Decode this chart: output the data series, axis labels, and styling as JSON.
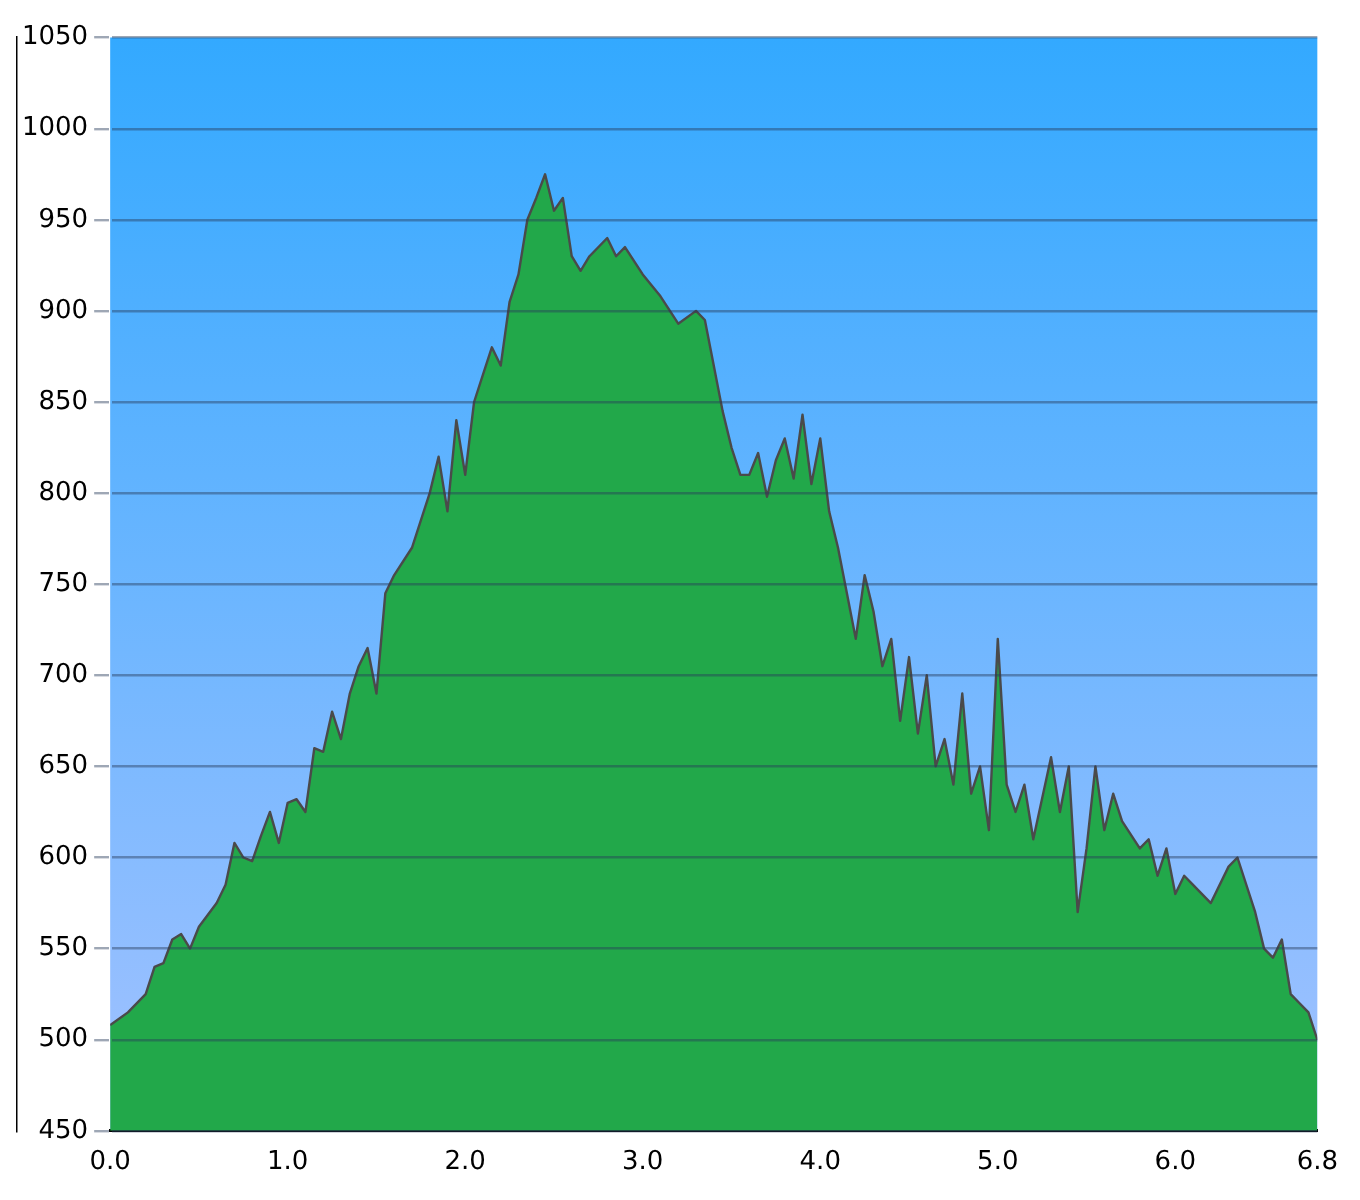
{
  "chart_data": {
    "type": "area",
    "x": [
      0,
      0.1,
      0.2,
      0.25,
      0.3,
      0.35,
      0.4,
      0.45,
      0.5,
      0.6,
      0.65,
      0.7,
      0.75,
      0.8,
      0.85,
      0.9,
      0.95,
      1.0,
      1.05,
      1.1,
      1.15,
      1.2,
      1.25,
      1.3,
      1.35,
      1.4,
      1.45,
      1.5,
      1.55,
      1.6,
      1.7,
      1.8,
      1.85,
      1.9,
      1.95,
      2.0,
      2.05,
      2.1,
      2.15,
      2.2,
      2.25,
      2.3,
      2.35,
      2.4,
      2.45,
      2.5,
      2.55,
      2.6,
      2.65,
      2.7,
      2.8,
      2.85,
      2.9,
      3.0,
      3.1,
      3.2,
      3.3,
      3.35,
      3.4,
      3.45,
      3.5,
      3.55,
      3.6,
      3.65,
      3.7,
      3.75,
      3.8,
      3.85,
      3.9,
      3.95,
      4.0,
      4.05,
      4.1,
      4.15,
      4.2,
      4.25,
      4.3,
      4.35,
      4.4,
      4.45,
      4.5,
      4.55,
      4.6,
      4.65,
      4.7,
      4.75,
      4.8,
      4.85,
      4.9,
      4.95,
      5.0,
      5.05,
      5.1,
      5.15,
      5.2,
      5.3,
      5.35,
      5.4,
      5.45,
      5.5,
      5.55,
      5.6,
      5.65,
      5.7,
      5.8,
      5.85,
      5.9,
      5.95,
      6.0,
      6.05,
      6.1,
      6.2,
      6.3,
      6.35,
      6.45,
      6.5,
      6.55,
      6.6,
      6.65,
      6.7,
      6.75,
      6.8
    ],
    "series": [
      {
        "color": "#22a84a",
        "values": [
          508,
          515,
          525,
          540,
          542,
          555,
          558,
          550,
          562,
          575,
          585,
          608,
          600,
          598,
          612,
          625,
          608,
          630,
          632,
          625,
          660,
          658,
          680,
          665,
          690,
          705,
          715,
          690,
          745,
          755,
          770,
          800,
          820,
          790,
          840,
          810,
          850,
          865,
          880,
          870,
          905,
          920,
          950,
          962,
          975,
          955,
          962,
          930,
          922,
          930,
          940,
          930,
          935,
          920,
          908,
          893,
          900,
          895,
          870,
          845,
          825,
          810,
          810,
          822,
          798,
          818,
          830,
          808,
          843,
          805,
          830,
          790,
          770,
          745,
          720,
          755,
          735,
          705,
          720,
          675,
          710,
          668,
          700,
          650,
          665,
          640,
          690,
          635,
          650,
          615,
          720,
          640,
          625,
          640,
          610,
          655,
          625,
          650,
          570,
          605,
          650,
          615,
          635,
          620,
          605,
          610,
          590,
          605,
          580,
          590,
          585,
          575,
          595,
          600,
          570,
          550,
          545,
          555,
          525,
          520,
          515,
          500
        ]
      }
    ],
    "xlim": [
      0,
      6.8
    ],
    "xticks": [
      {
        "value": 0,
        "label": "0.0"
      },
      {
        "value": 1,
        "label": "1.0"
      },
      {
        "value": 2,
        "label": "2.0"
      },
      {
        "value": 3,
        "label": "3.0"
      },
      {
        "value": 4,
        "label": "4.0"
      },
      {
        "value": 5,
        "label": "5.0"
      },
      {
        "value": 6,
        "label": "6.0"
      },
      {
        "value": 6.8,
        "label": "6.8"
      }
    ],
    "ylim": [
      450,
      1050
    ],
    "yticks": [
      450,
      500,
      550,
      600,
      650,
      700,
      750,
      800,
      850,
      900,
      950,
      1000,
      1050
    ],
    "grid": "y"
  }
}
